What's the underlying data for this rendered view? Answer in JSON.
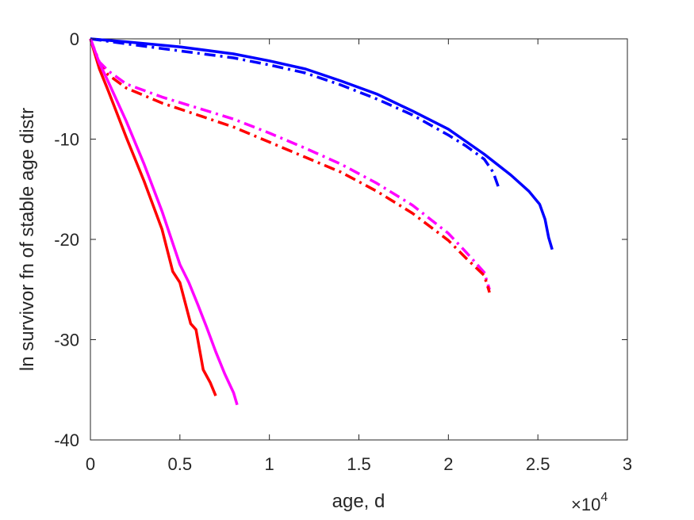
{
  "chart_data": {
    "type": "line",
    "title": "",
    "xlabel": "age, d",
    "ylabel": "ln survivor fn of stable age distr",
    "x_exponent_label": {
      "base": "×10",
      "exponent": "4"
    },
    "xlim": [
      0,
      30000
    ],
    "ylim": [
      -40,
      0
    ],
    "xticks": [
      0,
      5000,
      10000,
      15000,
      20000,
      25000,
      30000
    ],
    "xtick_labels": [
      "0",
      "0.5",
      "1",
      "1.5",
      "2",
      "2.5",
      "3"
    ],
    "yticks": [
      -40,
      -30,
      -20,
      -10,
      0
    ],
    "ytick_labels": [
      "-40",
      "-30",
      "-20",
      "-10",
      "0"
    ],
    "grid": false,
    "legend": "none",
    "series": [
      {
        "color": "#0000ff",
        "style": "solid",
        "x": [
          0,
          2000,
          5000,
          8000,
          10000,
          12000,
          14000,
          16000,
          18000,
          20000,
          22000,
          23500,
          24500,
          25100,
          25400,
          25600,
          25800
        ],
        "y": [
          0,
          -0.3,
          -0.8,
          -1.5,
          -2.2,
          -3.0,
          -4.2,
          -5.5,
          -7.2,
          -9.0,
          -11.5,
          -13.6,
          -15.2,
          -16.5,
          -18.0,
          -19.8,
          -21.0
        ]
      },
      {
        "color": "#0000ff",
        "style": "dashdot",
        "x": [
          0,
          2000,
          5000,
          8000,
          10000,
          12000,
          14000,
          16000,
          18000,
          20000,
          21000,
          22000,
          22500,
          22800
        ],
        "y": [
          0,
          -0.5,
          -1.2,
          -1.9,
          -2.6,
          -3.4,
          -4.6,
          -6.0,
          -7.6,
          -9.6,
          -10.7,
          -12.0,
          -13.3,
          -14.8
        ]
      },
      {
        "color": "#ff00ff",
        "style": "dashdot",
        "x": [
          0,
          500,
          1000,
          2000,
          4000,
          6000,
          8000,
          10000,
          12000,
          14000,
          16000,
          18000,
          20000,
          21000,
          22000,
          22300
        ],
        "y": [
          0,
          -2.3,
          -3.2,
          -4.5,
          -5.8,
          -6.9,
          -8.0,
          -9.4,
          -10.9,
          -12.5,
          -14.4,
          -16.6,
          -19.4,
          -21.3,
          -23.3,
          -25.0
        ]
      },
      {
        "color": "#ff0000",
        "style": "dashdot",
        "x": [
          0,
          500,
          1000,
          2000,
          4000,
          6000,
          8000,
          10000,
          12000,
          14000,
          16000,
          18000,
          20000,
          21000,
          22000,
          22300
        ],
        "y": [
          0,
          -2.6,
          -3.6,
          -4.9,
          -6.4,
          -7.6,
          -8.8,
          -10.3,
          -11.8,
          -13.3,
          -15.2,
          -17.4,
          -20.1,
          -21.9,
          -23.6,
          -25.3
        ]
      },
      {
        "color": "#ff0000",
        "style": "solid",
        "x": [
          0,
          500,
          1000,
          2000,
          3000,
          4000,
          4600,
          5000,
          5600,
          5900,
          6300,
          6700,
          7000
        ],
        "y": [
          0,
          -3.0,
          -5.2,
          -9.8,
          -14.2,
          -19.0,
          -23.2,
          -24.3,
          -28.4,
          -29.0,
          -33.0,
          -34.3,
          -35.6
        ]
      },
      {
        "color": "#ff00ff",
        "style": "solid",
        "x": [
          0,
          500,
          1000,
          2000,
          3000,
          4000,
          5000,
          5500,
          6000,
          6500,
          7000,
          7500,
          8000,
          8200
        ],
        "y": [
          0,
          -2.4,
          -4.3,
          -8.2,
          -12.5,
          -17.2,
          -22.5,
          -24.3,
          -26.5,
          -28.8,
          -31.2,
          -33.4,
          -35.3,
          -36.5
        ]
      }
    ]
  }
}
